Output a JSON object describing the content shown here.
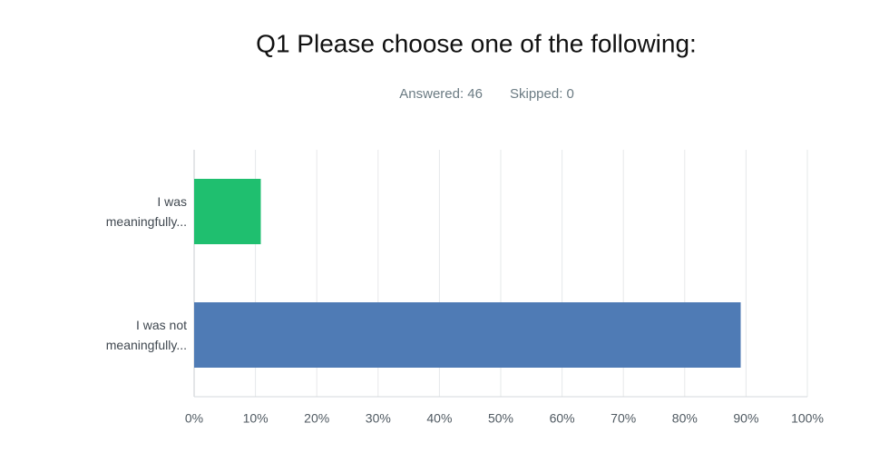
{
  "chart_data": {
    "type": "bar",
    "orientation": "horizontal",
    "title": "Q1 Please choose one of the following:",
    "subtitle": [
      "Answered: 46",
      "Skipped: 0"
    ],
    "categories": [
      "I was meaningfully...",
      "I was not meaningfully..."
    ],
    "values": [
      10.87,
      89.13
    ],
    "colors": [
      "#1fbf6f",
      "#4f7bb5"
    ],
    "xlim": [
      0,
      100
    ],
    "xticks": [
      {
        "value": 0,
        "label": "0%"
      },
      {
        "value": 10,
        "label": "10%"
      },
      {
        "value": 20,
        "label": "20%"
      },
      {
        "value": 30,
        "label": "30%"
      },
      {
        "value": 40,
        "label": "40%"
      },
      {
        "value": 50,
        "label": "50%"
      },
      {
        "value": 60,
        "label": "60%"
      },
      {
        "value": 70,
        "label": "70%"
      },
      {
        "value": 80,
        "label": "80%"
      },
      {
        "value": 90,
        "label": "90%"
      },
      {
        "value": 100,
        "label": "100%"
      }
    ],
    "grid": true
  }
}
